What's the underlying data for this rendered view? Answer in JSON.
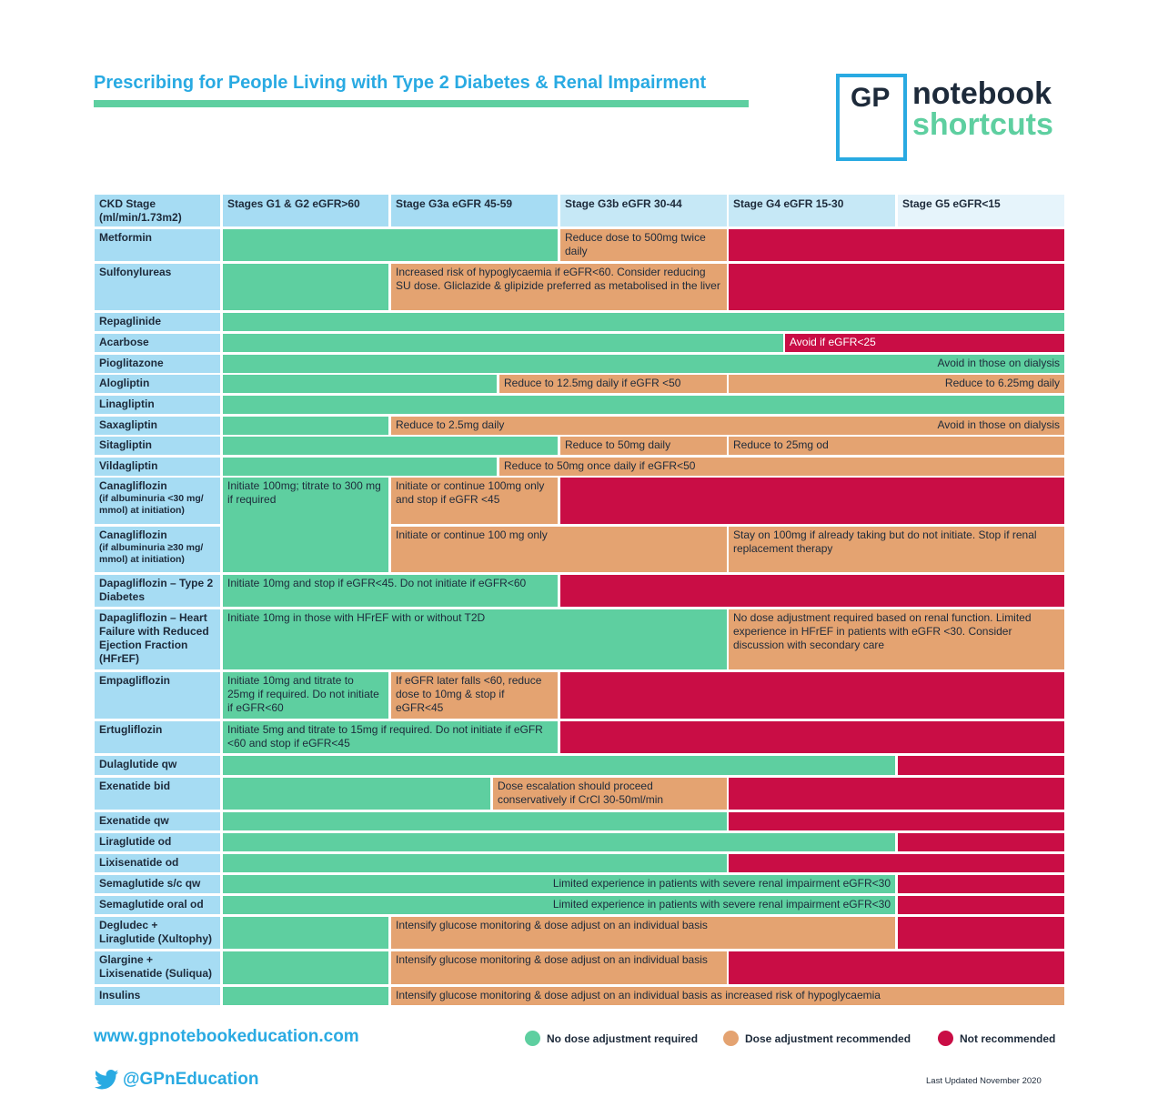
{
  "title": "Prescribing for People Living with Type 2 Diabetes & Renal Impairment",
  "logo": {
    "gp": "GP",
    "word1": "notebook",
    "word2": "shortcuts"
  },
  "colors": {
    "green": "#5ecfa0",
    "orange": "#e4a371",
    "red": "#c90d45",
    "blue": "#29aae2",
    "header": "#a6dcf3"
  },
  "header": {
    "ckd": "CKD Stage (ml/min/1.73m2)",
    "g1g2": "Stages G1 & G2 eGFR>60",
    "g3a": "Stage G3a eGFR 45-59",
    "g3b": "Stage G3b eGFR 30-44",
    "g4": "Stage G4 eGFR 15-30",
    "g5": "Stage G5 eGFR<15"
  },
  "drugs": {
    "metformin": "Metformin",
    "sulfonylureas": "Sulfonylureas",
    "repaglinide": "Repaglinide",
    "acarbose": "Acarbose",
    "pioglitazone": "Pioglitazone",
    "alogliptin": "Alogliptin",
    "linagliptin": "Linagliptin",
    "saxagliptin": "Saxagliptin",
    "sitagliptin": "Sitagliptin",
    "vildagliptin": "Vildagliptin",
    "cana1": "Canagliflozin",
    "cana1_sub": "(if albuminuria <30 mg/ mmol) at initiation)",
    "cana2": "Canagliflozin",
    "cana2_sub": "(if albuminuria ≥30 mg/ mmol) at initiation)",
    "dapa_t2": "Dapagliflozin – Type 2 Diabetes",
    "dapa_hf": "Dapagliflozin – Heart Failure with Reduced Ejection Fraction (HFrEF)",
    "empagliflozin": "Empagliflozin",
    "ertugliflozin": "Ertugliflozin",
    "dulaglutide": "Dulaglutide qw",
    "exenatide_bid": "Exenatide bid",
    "exenatide_qw": "Exenatide qw",
    "liraglutide": "Liraglutide od",
    "lixisenatide": "Lixisenatide od",
    "sema_sc": "Semaglutide s/c qw",
    "sema_oral": "Semaglutide oral od",
    "xultophy": "Degludec + Liraglutide (Xultophy)",
    "suliqua": "Glargine + Lixisenatide (Suliqua)",
    "insulins": "Insulins"
  },
  "notes": {
    "metformin": "Reduce dose to 500mg twice daily",
    "sulfonylureas": "Increased risk of hypoglycaemia if eGFR<60. Consider reducing SU dose. Gliclazide & glipizide preferred as metabolised in the liver",
    "acarbose": "Avoid if eGFR<25",
    "pioglitazone": "Avoid in those on dialysis",
    "alogliptin_1": "Reduce to 12.5mg daily if eGFR <50",
    "alogliptin_2": "Reduce to 6.25mg daily",
    "saxagliptin_1": "Reduce to 2.5mg daily",
    "saxagliptin_2": "Avoid in those on dialysis",
    "sitagliptin_1": "Reduce to 50mg daily",
    "sitagliptin_2": "Reduce to 25mg od",
    "vildagliptin": "Reduce to 50mg once daily if eGFR<50",
    "cana1_green": "Initiate 100mg; titrate to 300 mg if required",
    "cana1_orange": "Initiate or continue 100mg only and stop if eGFR <45",
    "cana2_orange1": "Initiate or continue 100 mg only",
    "cana2_orange2": "Stay on 100mg if already taking but do not initiate. Stop if renal replacement therapy",
    "dapa_t2": "Initiate 10mg and stop if eGFR<45. Do not initiate if eGFR<60",
    "dapa_hf_green": "Initiate 10mg in those with HFrEF with or without T2D",
    "dapa_hf_orange": "No dose adjustment required based on renal function. Limited experience in HFrEF in patients with eGFR <30. Consider discussion with secondary care",
    "empa_green": "Initiate 10mg and titrate to 25mg if required. Do not initiate if eGFR<60",
    "empa_orange": "If eGFR later falls <60, reduce dose to 10mg & stop if eGFR<45",
    "ertugliflozin": "Initiate 5mg and titrate to 15mg if required. Do not initiate if eGFR <60 and stop if eGFR<45",
    "exenatide_bid": "Dose escalation should proceed conservatively if CrCl 30-50ml/min",
    "sema_sc": "Limited experience in patients with severe renal impairment eGFR<30",
    "sema_oral": "Limited experience in patients with severe renal impairment eGFR<30",
    "xultophy": "Intensify glucose monitoring & dose adjust on an individual basis",
    "suliqua": "Intensify glucose monitoring & dose adjust on an individual basis",
    "insulins": "Intensify glucose monitoring & dose adjust on an individual basis as increased risk of hypoglycaemia"
  },
  "footer": {
    "url": "www.gpnotebookeducation.com",
    "twitter": "@GPnEducation",
    "legend_green": "No dose adjustment required",
    "legend_orange": "Dose adjustment recommended",
    "legend_red": "Not recommended",
    "updated": "Last Updated November 2020"
  }
}
